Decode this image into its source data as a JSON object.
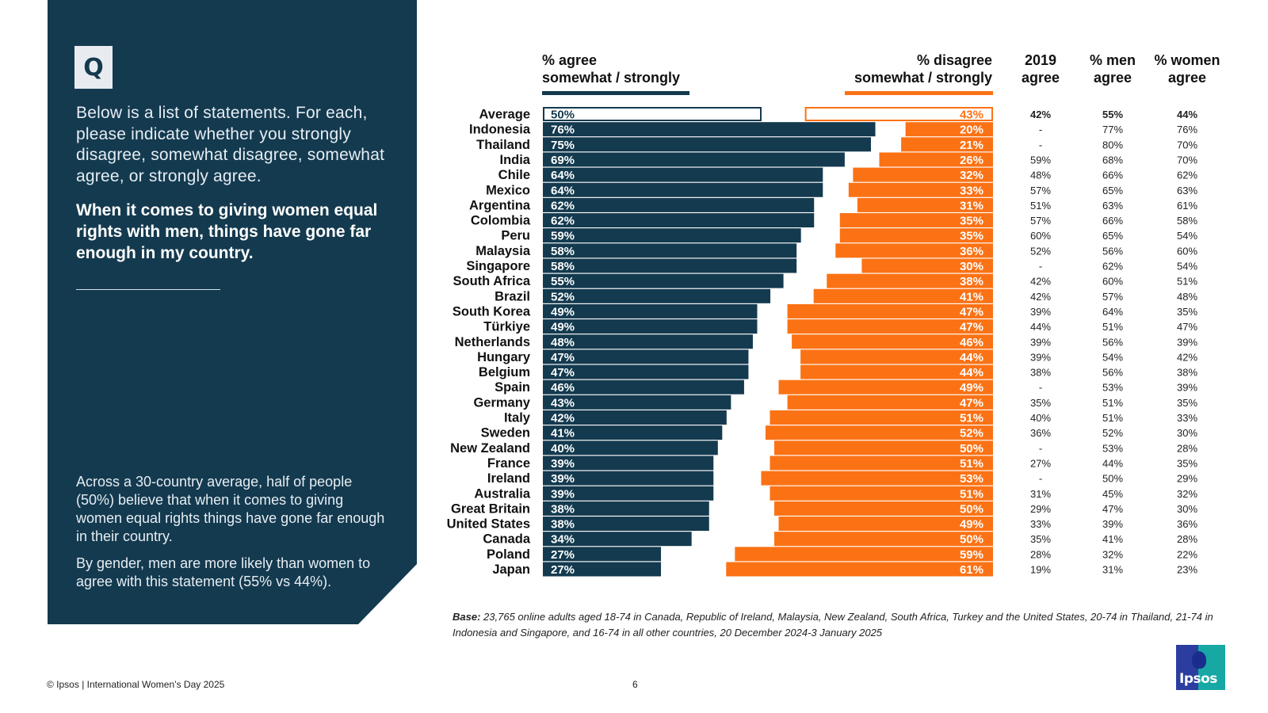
{
  "panel": {
    "q_label": "Q",
    "intro": "Below is a list of statements. For each, please indicate whether you strongly disagree, somewhat disagree, somewhat agree, or strongly agree.",
    "statement": "When it comes to giving women equal rights with men, things have gone far enough in my country.",
    "summary_1": "Across a 30-country average, half of people (50%) believe that when it comes to giving women equal rights things have gone far enough in their country.",
    "summary_2": "By gender, men are more likely than women to agree with this statement (55% vs 44%)."
  },
  "headers": {
    "agree_1": "% agree",
    "agree_2": "somewhat / strongly",
    "disagree_1": "% disagree",
    "disagree_2": "somewhat / strongly",
    "y2019_1": "2019",
    "y2019_2": "agree",
    "men_1": "% men",
    "men_2": "agree",
    "women_1": "% women",
    "women_2": "agree"
  },
  "colors": {
    "agree": "#143a4f",
    "disagree": "#fb7215",
    "label_light": "#ffffff"
  },
  "chart_data": {
    "type": "bar",
    "orientation": "horizontal-diverging",
    "title": "When it comes to giving women equal rights with men, things have gone far enough in my country.",
    "categories": [
      "Average",
      "Indonesia",
      "Thailand",
      "India",
      "Chile",
      "Mexico",
      "Argentina",
      "Colombia",
      "Peru",
      "Malaysia",
      "Singapore",
      "South Africa",
      "Brazil",
      "South Korea",
      "Türkiye",
      "Netherlands",
      "Hungary",
      "Belgium",
      "Spain",
      "Germany",
      "Italy",
      "Sweden",
      "New Zealand",
      "France",
      "Ireland",
      "Australia",
      "Great Britain",
      "United States",
      "Canada",
      "Poland",
      "Japan"
    ],
    "series": [
      {
        "name": "% agree somewhat / strongly",
        "values": [
          50,
          76,
          75,
          69,
          64,
          64,
          62,
          62,
          59,
          58,
          58,
          55,
          52,
          49,
          49,
          48,
          47,
          47,
          46,
          43,
          42,
          41,
          40,
          39,
          39,
          39,
          38,
          38,
          34,
          27,
          27
        ]
      },
      {
        "name": "% disagree somewhat / strongly",
        "values": [
          43,
          20,
          21,
          26,
          32,
          33,
          31,
          35,
          35,
          36,
          30,
          38,
          41,
          47,
          47,
          46,
          44,
          44,
          49,
          47,
          51,
          52,
          50,
          51,
          53,
          51,
          50,
          49,
          50,
          59,
          61
        ]
      }
    ],
    "table_columns": [
      {
        "name": "2019 agree",
        "values": [
          "42%",
          "-",
          "-",
          "59%",
          "48%",
          "57%",
          "51%",
          "57%",
          "60%",
          "52%",
          "-",
          "42%",
          "42%",
          "39%",
          "44%",
          "39%",
          "39%",
          "38%",
          "-",
          "35%",
          "40%",
          "36%",
          "-",
          "27%",
          "-",
          "31%",
          "29%",
          "33%",
          "35%",
          "28%",
          "19%"
        ]
      },
      {
        "name": "% men agree",
        "values": [
          "55%",
          "77%",
          "80%",
          "68%",
          "66%",
          "65%",
          "63%",
          "66%",
          "65%",
          "56%",
          "62%",
          "60%",
          "57%",
          "64%",
          "51%",
          "56%",
          "54%",
          "56%",
          "53%",
          "51%",
          "51%",
          "52%",
          "53%",
          "44%",
          "50%",
          "45%",
          "47%",
          "39%",
          "41%",
          "32%",
          "31%"
        ]
      },
      {
        "name": "% women agree",
        "values": [
          "44%",
          "76%",
          "70%",
          "70%",
          "62%",
          "63%",
          "61%",
          "58%",
          "54%",
          "60%",
          "54%",
          "51%",
          "48%",
          "35%",
          "47%",
          "39%",
          "42%",
          "38%",
          "39%",
          "35%",
          "33%",
          "30%",
          "28%",
          "35%",
          "29%",
          "32%",
          "30%",
          "36%",
          "28%",
          "22%",
          "23%"
        ]
      }
    ],
    "xlim": [
      0,
      100
    ],
    "unit": "%",
    "highlight_row": "Average",
    "legend": "top"
  },
  "footer": {
    "base_label": "Base:",
    "base_text": " 23,765 online adults aged 18-74 in Canada, Republic of Ireland, Malaysia, New Zealand, South Africa, Turkey and the United States, 20-74 in Thailand, 21-74 in Indonesia and Singapore, and 16-74 in all other countries, 20 December 2024-3 January 2025",
    "copyright": "© Ipsos | International Women’s Day 2025",
    "page_number": "6",
    "logo_text": "Ipsos"
  }
}
